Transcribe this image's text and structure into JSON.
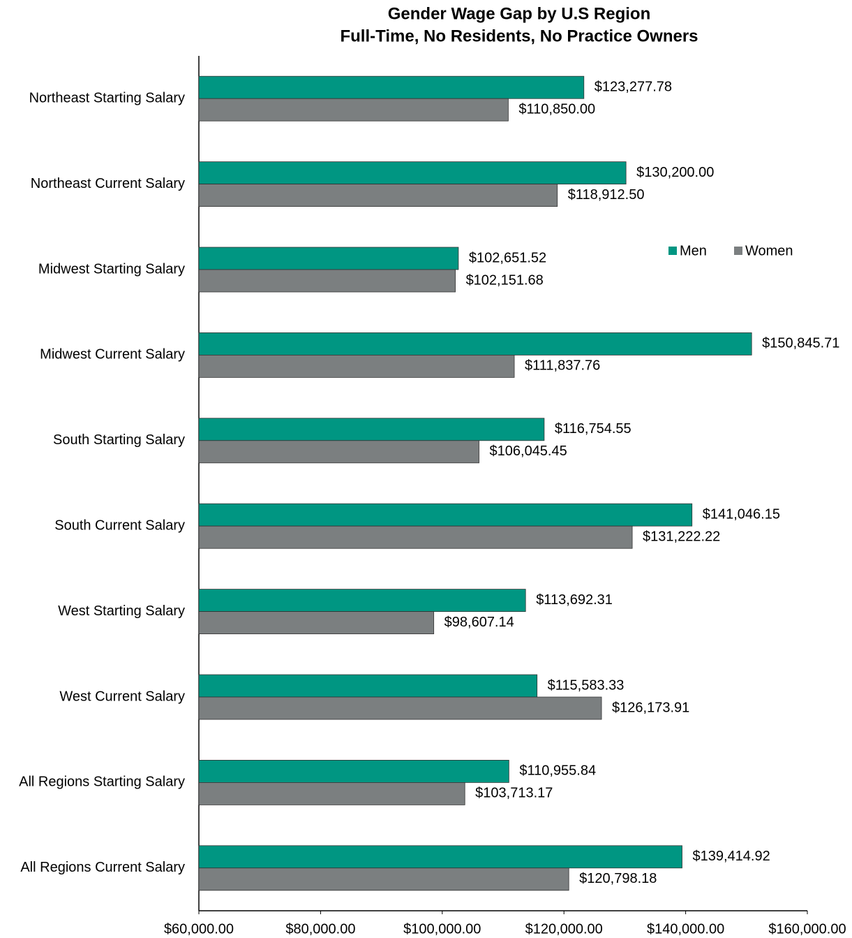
{
  "chart_data": {
    "type": "bar",
    "orientation": "horizontal",
    "title": "Gender Wage Gap by U.S Region",
    "subtitle": "Full-Time, No Residents, No Practice Owners",
    "categories": [
      "Northeast Starting Salary",
      "Northeast Current Salary",
      "Midwest Starting Salary",
      "Midwest Current Salary",
      "South Starting Salary",
      "South Current Salary",
      "West Starting Salary",
      "West Current Salary",
      "All Regions Starting Salary",
      "All Regions Current Salary"
    ],
    "series": [
      {
        "name": "Men",
        "color": "#009682",
        "values": [
          123277.78,
          130200.0,
          102651.52,
          150845.71,
          116754.55,
          141046.15,
          113692.31,
          115583.33,
          110955.84,
          139414.92
        ],
        "value_labels": [
          "$123,277.78",
          "$130,200.00",
          "$102,651.52",
          "$150,845.71",
          "$116,754.55",
          "$141,046.15",
          "$113,692.31",
          "$115,583.33",
          "$110,955.84",
          "$139,414.92"
        ]
      },
      {
        "name": "Women",
        "color": "#7b7f80",
        "values": [
          110850.0,
          118912.5,
          102151.68,
          111837.76,
          106045.45,
          131222.22,
          98607.14,
          126173.91,
          103713.17,
          120798.18
        ],
        "value_labels": [
          "$110,850.00",
          "$118,912.50",
          "$102,151.68",
          "$111,837.76",
          "$106,045.45",
          "$131,222.22",
          "$98,607.14",
          "$126,173.91",
          "$103,713.17",
          "$120,798.18"
        ]
      }
    ],
    "xlim": [
      60000,
      160000
    ],
    "xticks": [
      {
        "value": 60000,
        "label": "$60,000.00"
      },
      {
        "value": 80000,
        "label": "$80,000.00"
      },
      {
        "value": 100000,
        "label": "$100,000.00"
      },
      {
        "value": 120000,
        "label": "$120,000.00"
      },
      {
        "value": 140000,
        "label": "$140,000.00"
      },
      {
        "value": 160000,
        "label": "$160,000.00"
      }
    ],
    "grid": false,
    "legend": "upper right"
  }
}
